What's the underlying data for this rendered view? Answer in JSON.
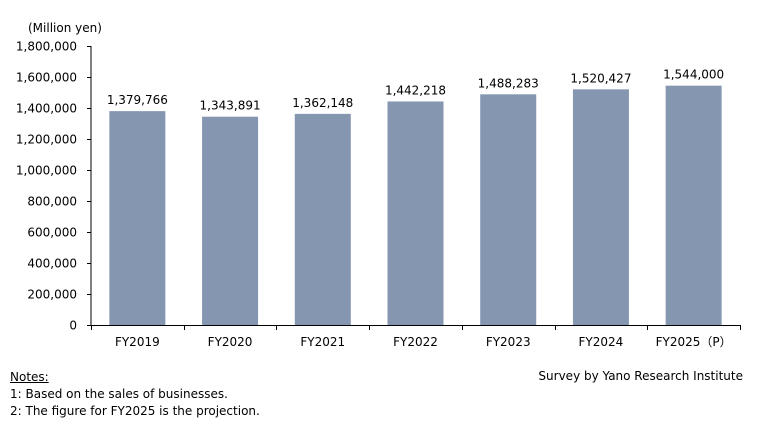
{
  "chart_data": {
    "type": "bar",
    "unit_label": "(Million yen)",
    "categories": [
      "FY2019",
      "FY2020",
      "FY2021",
      "FY2022",
      "FY2023",
      "FY2024",
      "FY2025（P）"
    ],
    "values": [
      1379766,
      1343891,
      1362148,
      1442218,
      1488283,
      1520427,
      1544000
    ],
    "value_labels": [
      "1,379,766",
      "1,343,891",
      "1,362,148",
      "1,442,218",
      "1,488,283",
      "1,520,427",
      "1,544,000"
    ],
    "y_ticks": [
      0,
      200000,
      400000,
      600000,
      800000,
      1000000,
      1200000,
      1400000,
      1600000,
      1800000
    ],
    "y_tick_labels": [
      "0",
      "200,000",
      "400,000",
      "600,000",
      "800,000",
      "1,000,000",
      "1,200,000",
      "1,400,000",
      "1,600,000",
      "1,800,000"
    ],
    "ylim": [
      0,
      1800000
    ],
    "bar_color": "#8496B0",
    "grid": false
  },
  "notes": {
    "title": "Notes:",
    "items": [
      "1: Based on the sales of businesses.",
      "2: The figure for FY2025 is the projection."
    ]
  },
  "source": "Survey by Yano Research Institute"
}
